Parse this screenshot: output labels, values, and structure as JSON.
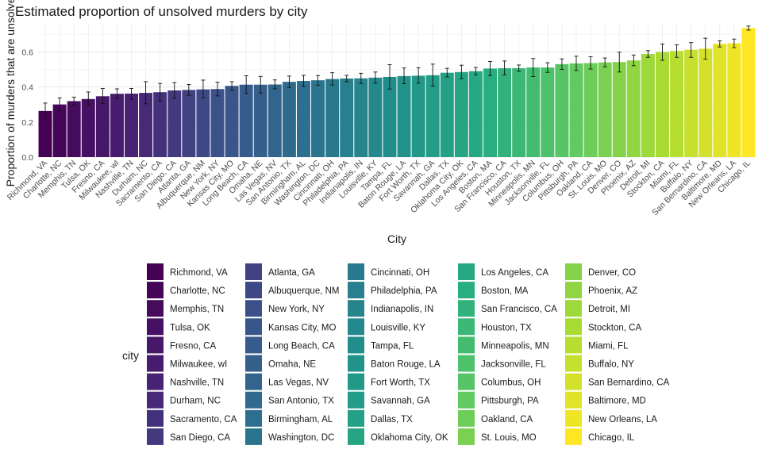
{
  "chart_data": {
    "type": "bar",
    "title": "Estimated proportion of unsolved murders by city",
    "xlabel": "City",
    "ylabel": "Proportion of murders that are unsolved",
    "ylim": [
      0,
      0.76
    ],
    "yticks": [
      "0.0",
      "0.2",
      "0.4",
      "0.6"
    ],
    "grid": true,
    "legend_title": "city",
    "legend_position": "bottom",
    "error_bars": true,
    "series": [
      {
        "categories": [
          "Richmond, VA",
          "Charlotte, NC",
          "Memphis, TN",
          "Tulsa, OK",
          "Fresno, CA",
          "Milwaukee, wI",
          "Nashville, TN",
          "Durham, NC",
          "Sacramento, CA",
          "San Diego, CA",
          "Atlanta, GA",
          "Albuquerque, NM",
          "New York, NY",
          "Kansas City, MO",
          "Long Beach, CA",
          "Omaha, NE",
          "Las Vegas, NV",
          "San Antonio, TX",
          "Birmingham, AL",
          "Washington, DC",
          "Cincinnati, OH",
          "Philadelphia, PA",
          "Indianapolis, IN",
          "Louisville, KY",
          "Tampa, FL",
          "Baton Rouge, LA",
          "Fort Worth, TX",
          "Savannah, GA",
          "Dallas, TX",
          "Oklahoma City, OK",
          "Los Angeles, CA",
          "Boston, MA",
          "San Francisco, CA",
          "Houston, TX",
          "Minneapolis, MN",
          "Jacksonville, FL",
          "Columbus, OH",
          "Pittsburgh, PA",
          "Oakland, CA",
          "St. Louis, MO",
          "Denver, CO",
          "Phoenix, AZ",
          "Detroit, MI",
          "Stockton, CA",
          "Miami, FL",
          "Buffalo, NY",
          "San Bernardino, CA",
          "Baltimore, MD",
          "New Orleans, LA",
          "Chicago, IL"
        ],
        "values": [
          0.263,
          0.3,
          0.319,
          0.331,
          0.347,
          0.361,
          0.362,
          0.366,
          0.37,
          0.38,
          0.383,
          0.386,
          0.388,
          0.406,
          0.413,
          0.413,
          0.414,
          0.429,
          0.434,
          0.438,
          0.445,
          0.448,
          0.449,
          0.453,
          0.457,
          0.462,
          0.464,
          0.467,
          0.481,
          0.485,
          0.49,
          0.505,
          0.507,
          0.507,
          0.511,
          0.511,
          0.53,
          0.534,
          0.536,
          0.54,
          0.542,
          0.551,
          0.588,
          0.599,
          0.605,
          0.612,
          0.618,
          0.646,
          0.649,
          0.736
        ],
        "lower": [
          0.224,
          0.264,
          0.296,
          0.294,
          0.305,
          0.334,
          0.329,
          0.304,
          0.321,
          0.336,
          0.352,
          0.337,
          0.349,
          0.382,
          0.363,
          0.365,
          0.389,
          0.397,
          0.403,
          0.41,
          0.411,
          0.43,
          0.42,
          0.422,
          0.388,
          0.418,
          0.422,
          0.404,
          0.457,
          0.447,
          0.469,
          0.465,
          0.468,
          0.489,
          0.459,
          0.483,
          0.5,
          0.494,
          0.502,
          0.515,
          0.485,
          0.521,
          0.569,
          0.552,
          0.569,
          0.569,
          0.558,
          0.628,
          0.624,
          0.724
        ],
        "upper": [
          0.308,
          0.338,
          0.342,
          0.371,
          0.391,
          0.389,
          0.391,
          0.43,
          0.42,
          0.425,
          0.414,
          0.439,
          0.427,
          0.43,
          0.464,
          0.46,
          0.44,
          0.462,
          0.466,
          0.465,
          0.481,
          0.466,
          0.478,
          0.485,
          0.527,
          0.508,
          0.51,
          0.53,
          0.506,
          0.524,
          0.511,
          0.545,
          0.548,
          0.525,
          0.562,
          0.538,
          0.56,
          0.575,
          0.572,
          0.565,
          0.598,
          0.582,
          0.607,
          0.645,
          0.64,
          0.653,
          0.678,
          0.663,
          0.673,
          0.747
        ]
      }
    ],
    "color_scale": "viridis",
    "colors": [
      "#440154",
      "#31688e",
      "#35b779",
      "#fde725"
    ]
  }
}
